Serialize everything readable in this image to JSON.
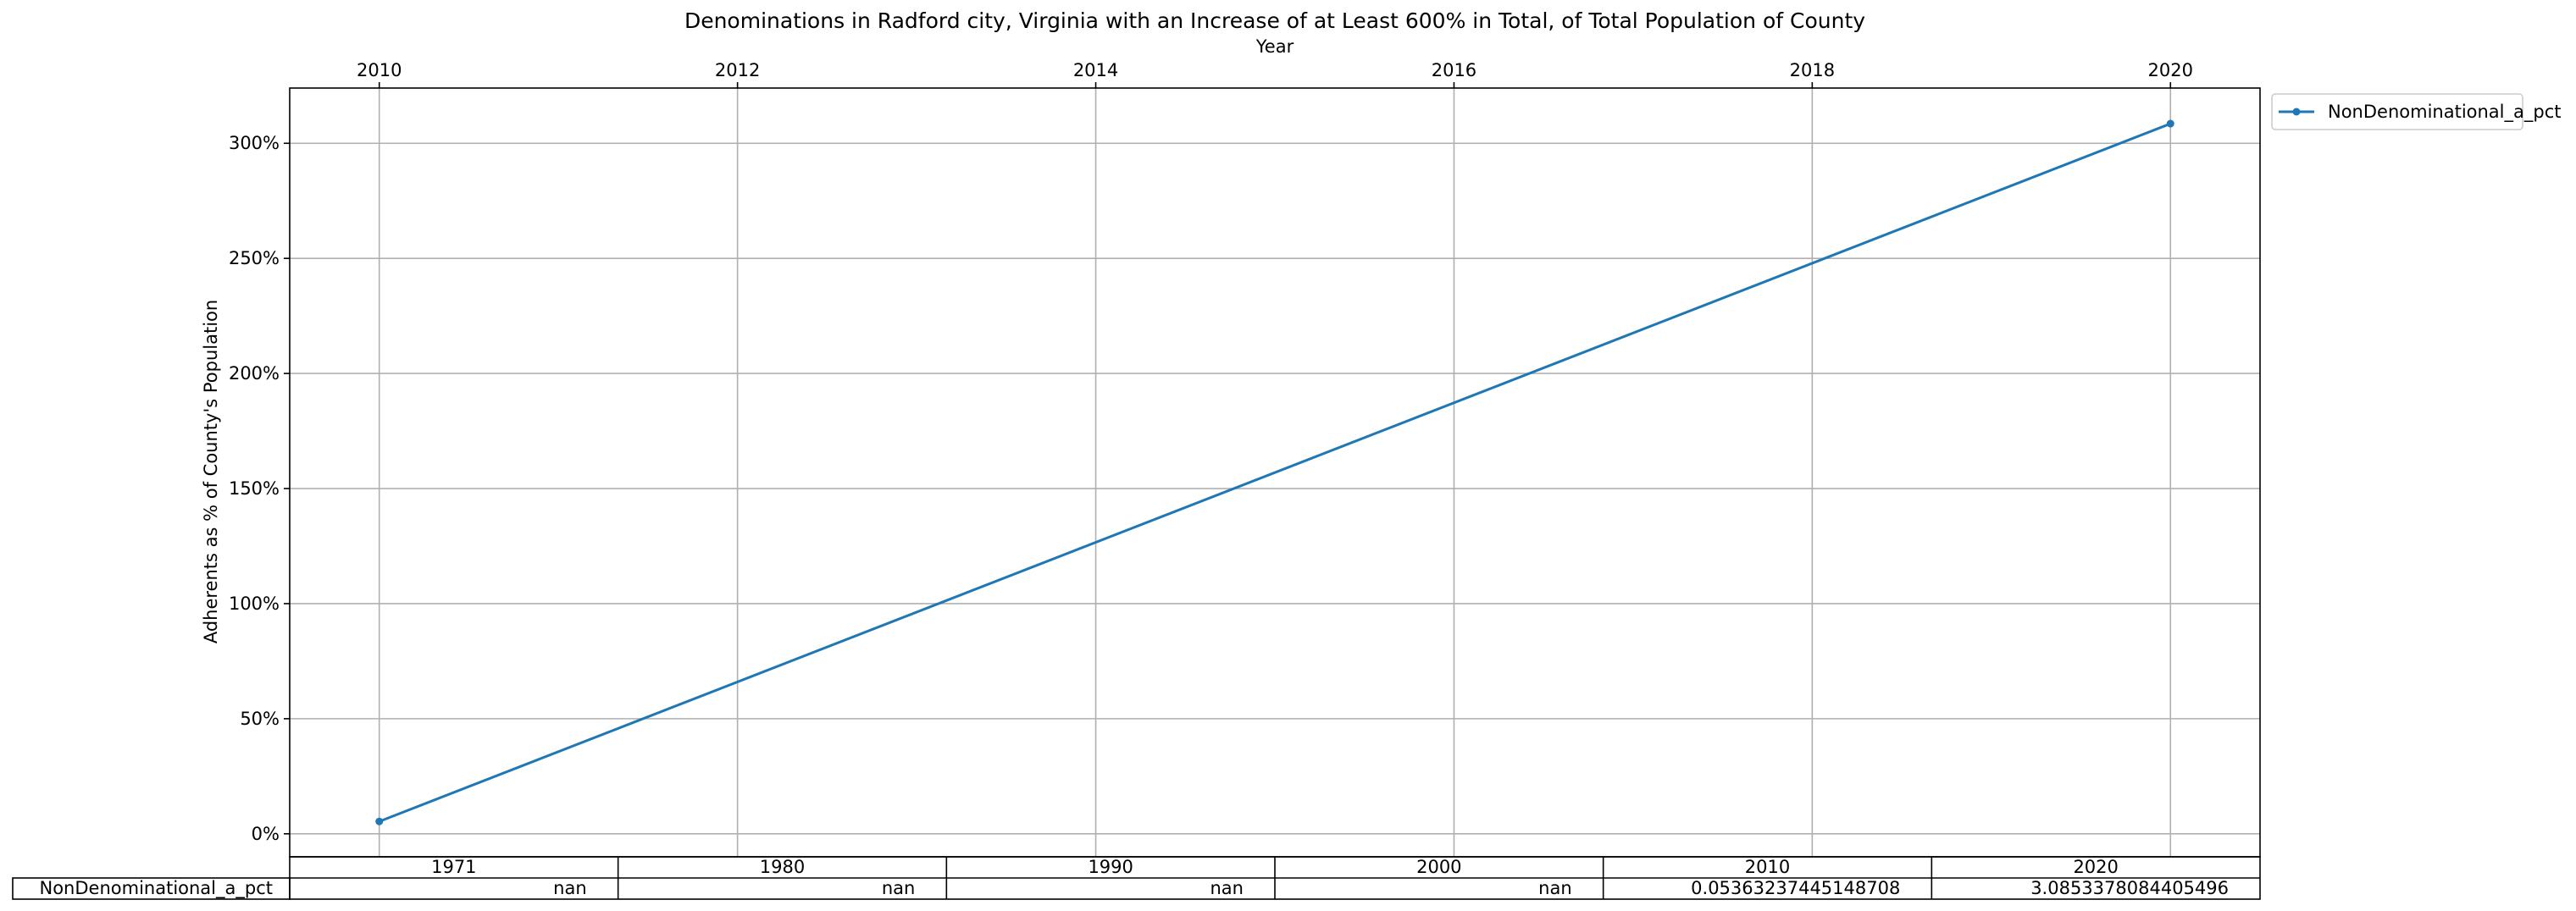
{
  "chart_data": {
    "type": "line",
    "title": "Denominations in Radford city, Virginia with an Increase of at Least 600% in Total, of Total Population of County",
    "xlabel": "Year",
    "ylabel": "Adherents as % of County's Population",
    "x_ticks": [
      "2010",
      "2012",
      "2014",
      "2016",
      "2018",
      "2020"
    ],
    "y_ticks": [
      "0%",
      "50%",
      "100%",
      "150%",
      "200%",
      "250%",
      "300%"
    ],
    "xlim": [
      2009.5,
      2020.5
    ],
    "ylim": [
      -0.1,
      3.24
    ],
    "grid": true,
    "legend_position": "outside-top-right",
    "series": [
      {
        "name": "NonDenominational_a_pct",
        "color": "#1f77b4",
        "x": [
          2010,
          2020
        ],
        "y": [
          0.05363237445148708,
          3.0853378084405496
        ]
      }
    ],
    "table": {
      "columns": [
        "1971",
        "1980",
        "1990",
        "2000",
        "2010",
        "2020"
      ],
      "rows": [
        {
          "label": "NonDenominational_a_pct",
          "cells": [
            "nan",
            "nan",
            "nan",
            "nan",
            "0.05363237445148708",
            "3.0853378084405496"
          ]
        }
      ]
    }
  }
}
